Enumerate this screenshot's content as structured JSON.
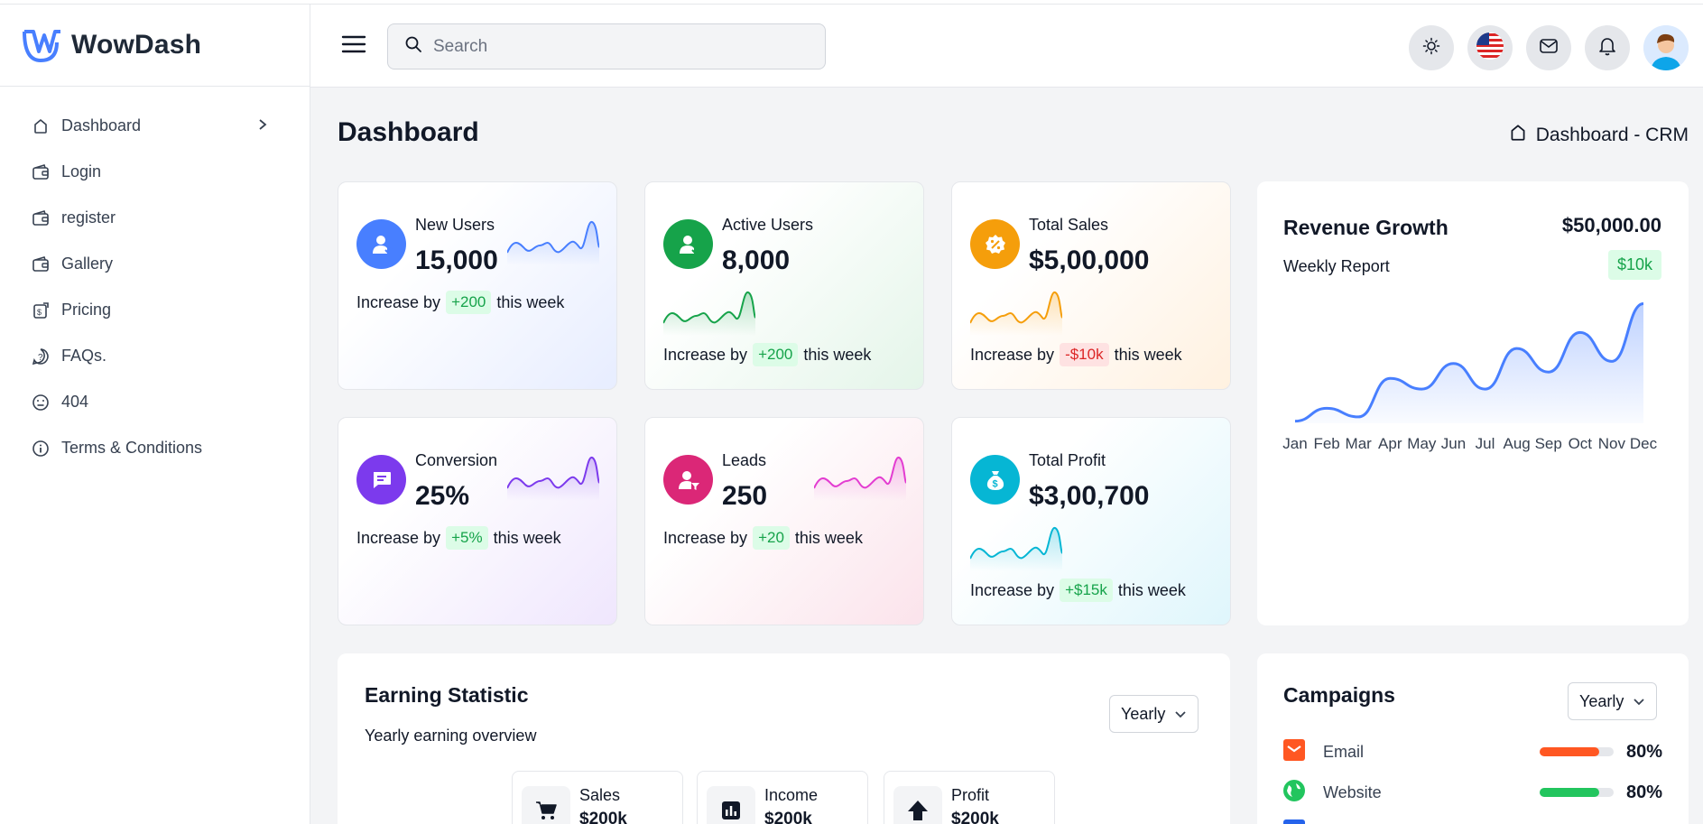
{
  "app": {
    "name": "WowDash"
  },
  "sidebar": {
    "items": [
      {
        "label": "Dashboard",
        "icon": "home-icon"
      },
      {
        "label": "Login",
        "icon": "wallet-icon"
      },
      {
        "label": "register",
        "icon": "wallet-icon"
      },
      {
        "label": "Gallery",
        "icon": "wallet-icon"
      },
      {
        "label": "Pricing",
        "icon": "dollar-icon"
      },
      {
        "label": "FAQs.",
        "icon": "question-icon"
      },
      {
        "label": "404",
        "icon": "sad-face-icon"
      },
      {
        "label": "Terms & Conditions",
        "icon": "info-icon"
      }
    ]
  },
  "header": {
    "search_placeholder": "Search"
  },
  "page": {
    "title": "Dashboard",
    "breadcrumb": "Dashboard - CRM"
  },
  "stats": [
    {
      "label": "New Users",
      "value": "15,000",
      "foot_prefix": "Increase by",
      "change": "+200",
      "foot_suffix": "this week",
      "color": "#487fff",
      "trend": "up"
    },
    {
      "label": "Active Users",
      "value": "8,000",
      "foot_prefix": "Increase by",
      "change": "+200",
      "foot_suffix": "this week",
      "color": "#16a34a",
      "trend": "up"
    },
    {
      "label": "Total Sales",
      "value": "$5,00,000",
      "foot_prefix": "Increase by",
      "change": "-$10k",
      "foot_suffix": "this week",
      "color": "#f59e0b",
      "trend": "down"
    },
    {
      "label": "Conversion",
      "value": "25%",
      "foot_prefix": "Increase by",
      "change": "+5%",
      "foot_suffix": "this week",
      "color": "#7c3aed",
      "trend": "up"
    },
    {
      "label": "Leads",
      "value": "250",
      "foot_prefix": "Increase by",
      "change": "+20",
      "foot_suffix": "this week",
      "color": "#db2777",
      "trend": "up"
    },
    {
      "label": "Total Profit",
      "value": "$3,00,700",
      "foot_prefix": "Increase by",
      "change": "+$15k",
      "foot_suffix": "this week",
      "color": "#06b6d4",
      "trend": "up"
    }
  ],
  "revenue": {
    "title": "Revenue Growth",
    "amount": "$50,000.00",
    "subtitle": "Weekly Report",
    "badge": "$10k"
  },
  "chart_data": {
    "type": "area",
    "title": "Revenue Growth",
    "categories": [
      "Jan",
      "Feb",
      "Mar",
      "Apr",
      "May",
      "Jun",
      "Jul",
      "Aug",
      "Sep",
      "Oct",
      "Nov",
      "Dec"
    ],
    "values": [
      2,
      14,
      6,
      42,
      32,
      56,
      32,
      70,
      48,
      85,
      58,
      112
    ],
    "ylim": [
      0,
      120
    ],
    "color": "#487fff"
  },
  "earning": {
    "title": "Earning Statistic",
    "subtitle": "Yearly earning overview",
    "period": "Yearly",
    "items": [
      {
        "label": "Sales",
        "value": "$200k",
        "icon": "cart-icon"
      },
      {
        "label": "Income",
        "value": "$200k",
        "icon": "bar-chart-icon"
      },
      {
        "label": "Profit",
        "value": "$200k",
        "icon": "arrow-up-icon"
      }
    ]
  },
  "campaigns": {
    "title": "Campaigns",
    "period": "Yearly",
    "items": [
      {
        "label": "Email",
        "percent": "80%",
        "fill": 0.8,
        "color": "#ff5722",
        "icon": "mail-icon"
      },
      {
        "label": "Website",
        "percent": "80%",
        "fill": 0.8,
        "color": "#22c55e",
        "icon": "globe-icon"
      }
    ]
  }
}
